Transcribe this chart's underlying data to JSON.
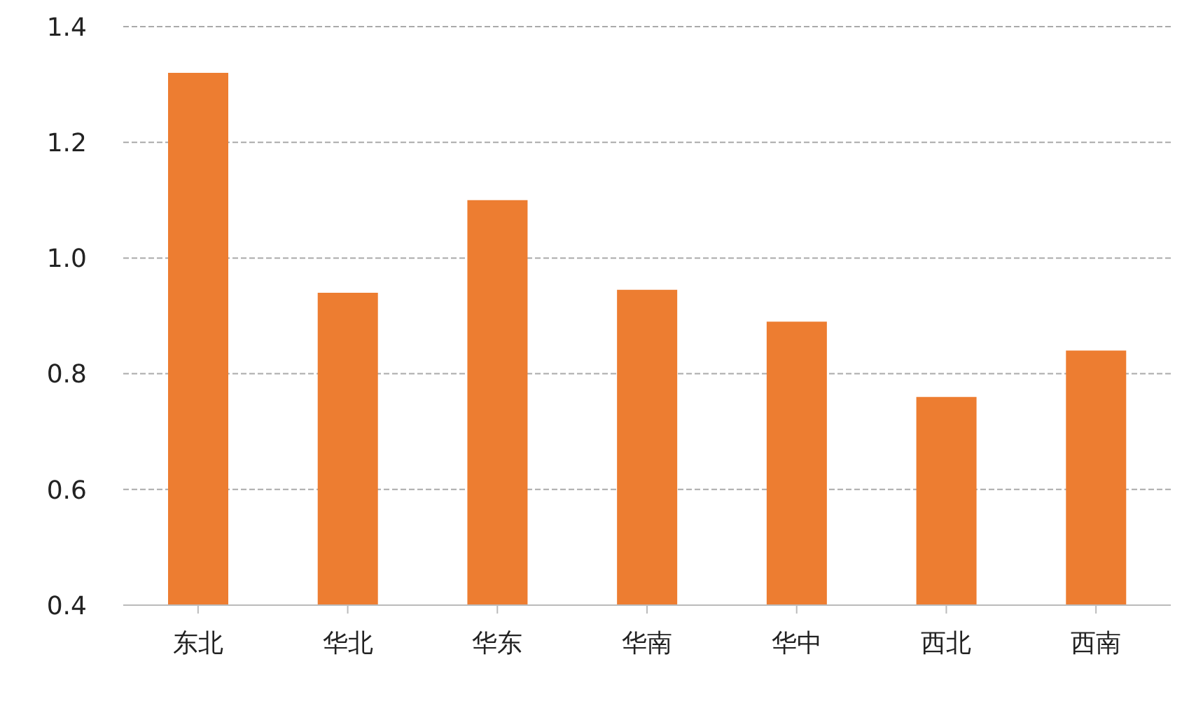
{
  "chart_data": {
    "type": "bar",
    "categories": [
      "东北",
      "华北",
      "华东",
      "华南",
      "华中",
      "西北",
      "西南"
    ],
    "values": [
      1.32,
      0.94,
      1.1,
      0.945,
      0.89,
      0.76,
      0.84
    ],
    "color": "#ed7d31",
    "ylim": [
      0.4,
      1.4
    ],
    "yticks": [
      {
        "value": 0.4,
        "label": "0.4"
      },
      {
        "value": 0.6,
        "label": "0.6"
      },
      {
        "value": 0.8,
        "label": "0.8"
      },
      {
        "value": 1.0,
        "label": "1.0"
      },
      {
        "value": 1.2,
        "label": "1.2"
      },
      {
        "value": 1.4,
        "label": "1.4"
      }
    ],
    "grid": "y"
  }
}
